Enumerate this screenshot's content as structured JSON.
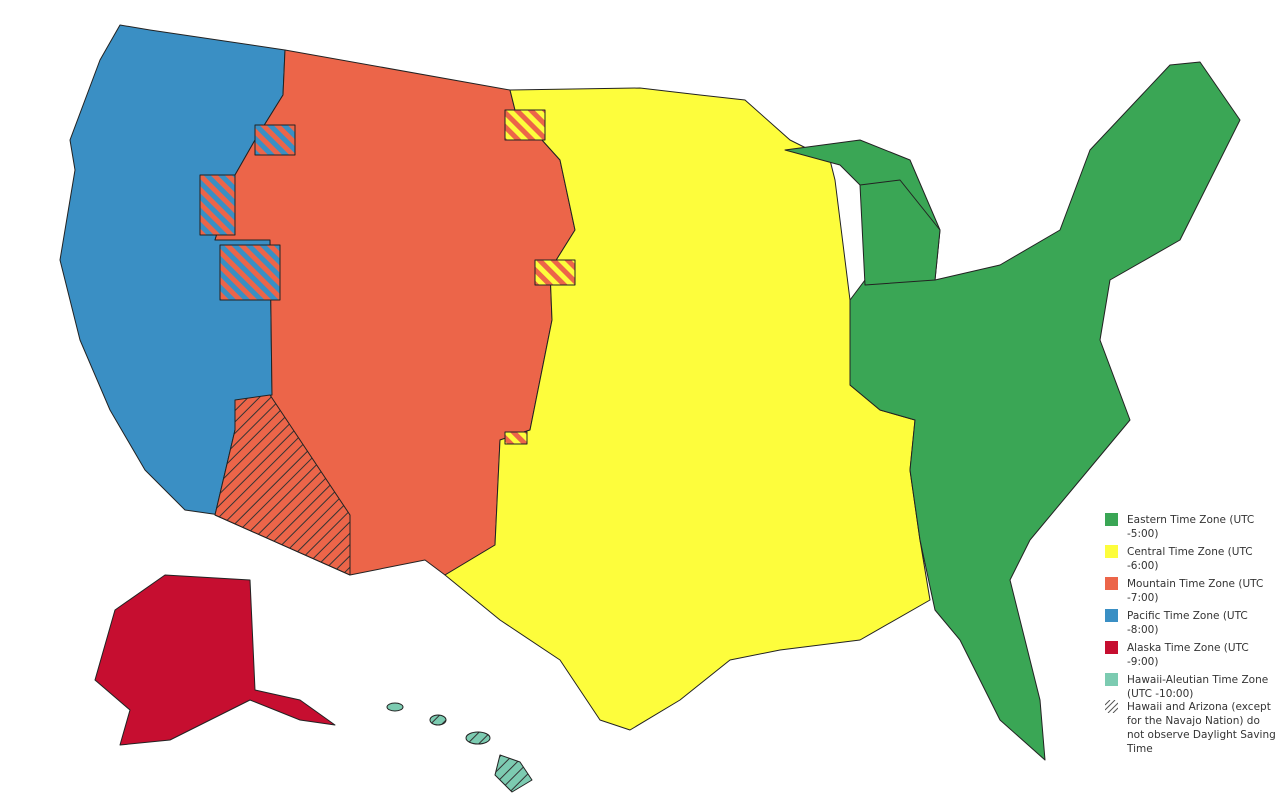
{
  "legend": {
    "items": [
      {
        "label": "Eastern Time Zone (UTC -5:00)",
        "color": "#3aa655"
      },
      {
        "label": "Central Time Zone (UTC -6:00)",
        "color": "#fdfd3c"
      },
      {
        "label": "Mountain Time Zone (UTC -7:00)",
        "color": "#ec6549"
      },
      {
        "label": "Pacific Time Zone (UTC -8:00)",
        "color": "#3a8fc4"
      },
      {
        "label": "Alaska Time Zone (UTC -9:00)",
        "color": "#c60e30"
      },
      {
        "label": "Hawaii-Aleutian Time Zone (UTC -10:00)",
        "color": "#7ccbb1"
      }
    ],
    "hatch_note": "Hawaii and Arizona (except for the Navajo Nation) do not observe Daylight Saving Time",
    "hatch_icon": "diagonal-hatch"
  }
}
